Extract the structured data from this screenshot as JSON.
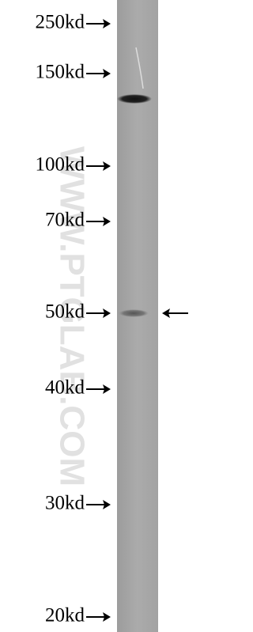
{
  "markers": [
    "250kd",
    "150kd",
    "100kd",
    "70kd",
    "50kd",
    "40kd",
    "30kd",
    "20kd"
  ],
  "watermark": "WWW.PTGLAB.COM"
}
